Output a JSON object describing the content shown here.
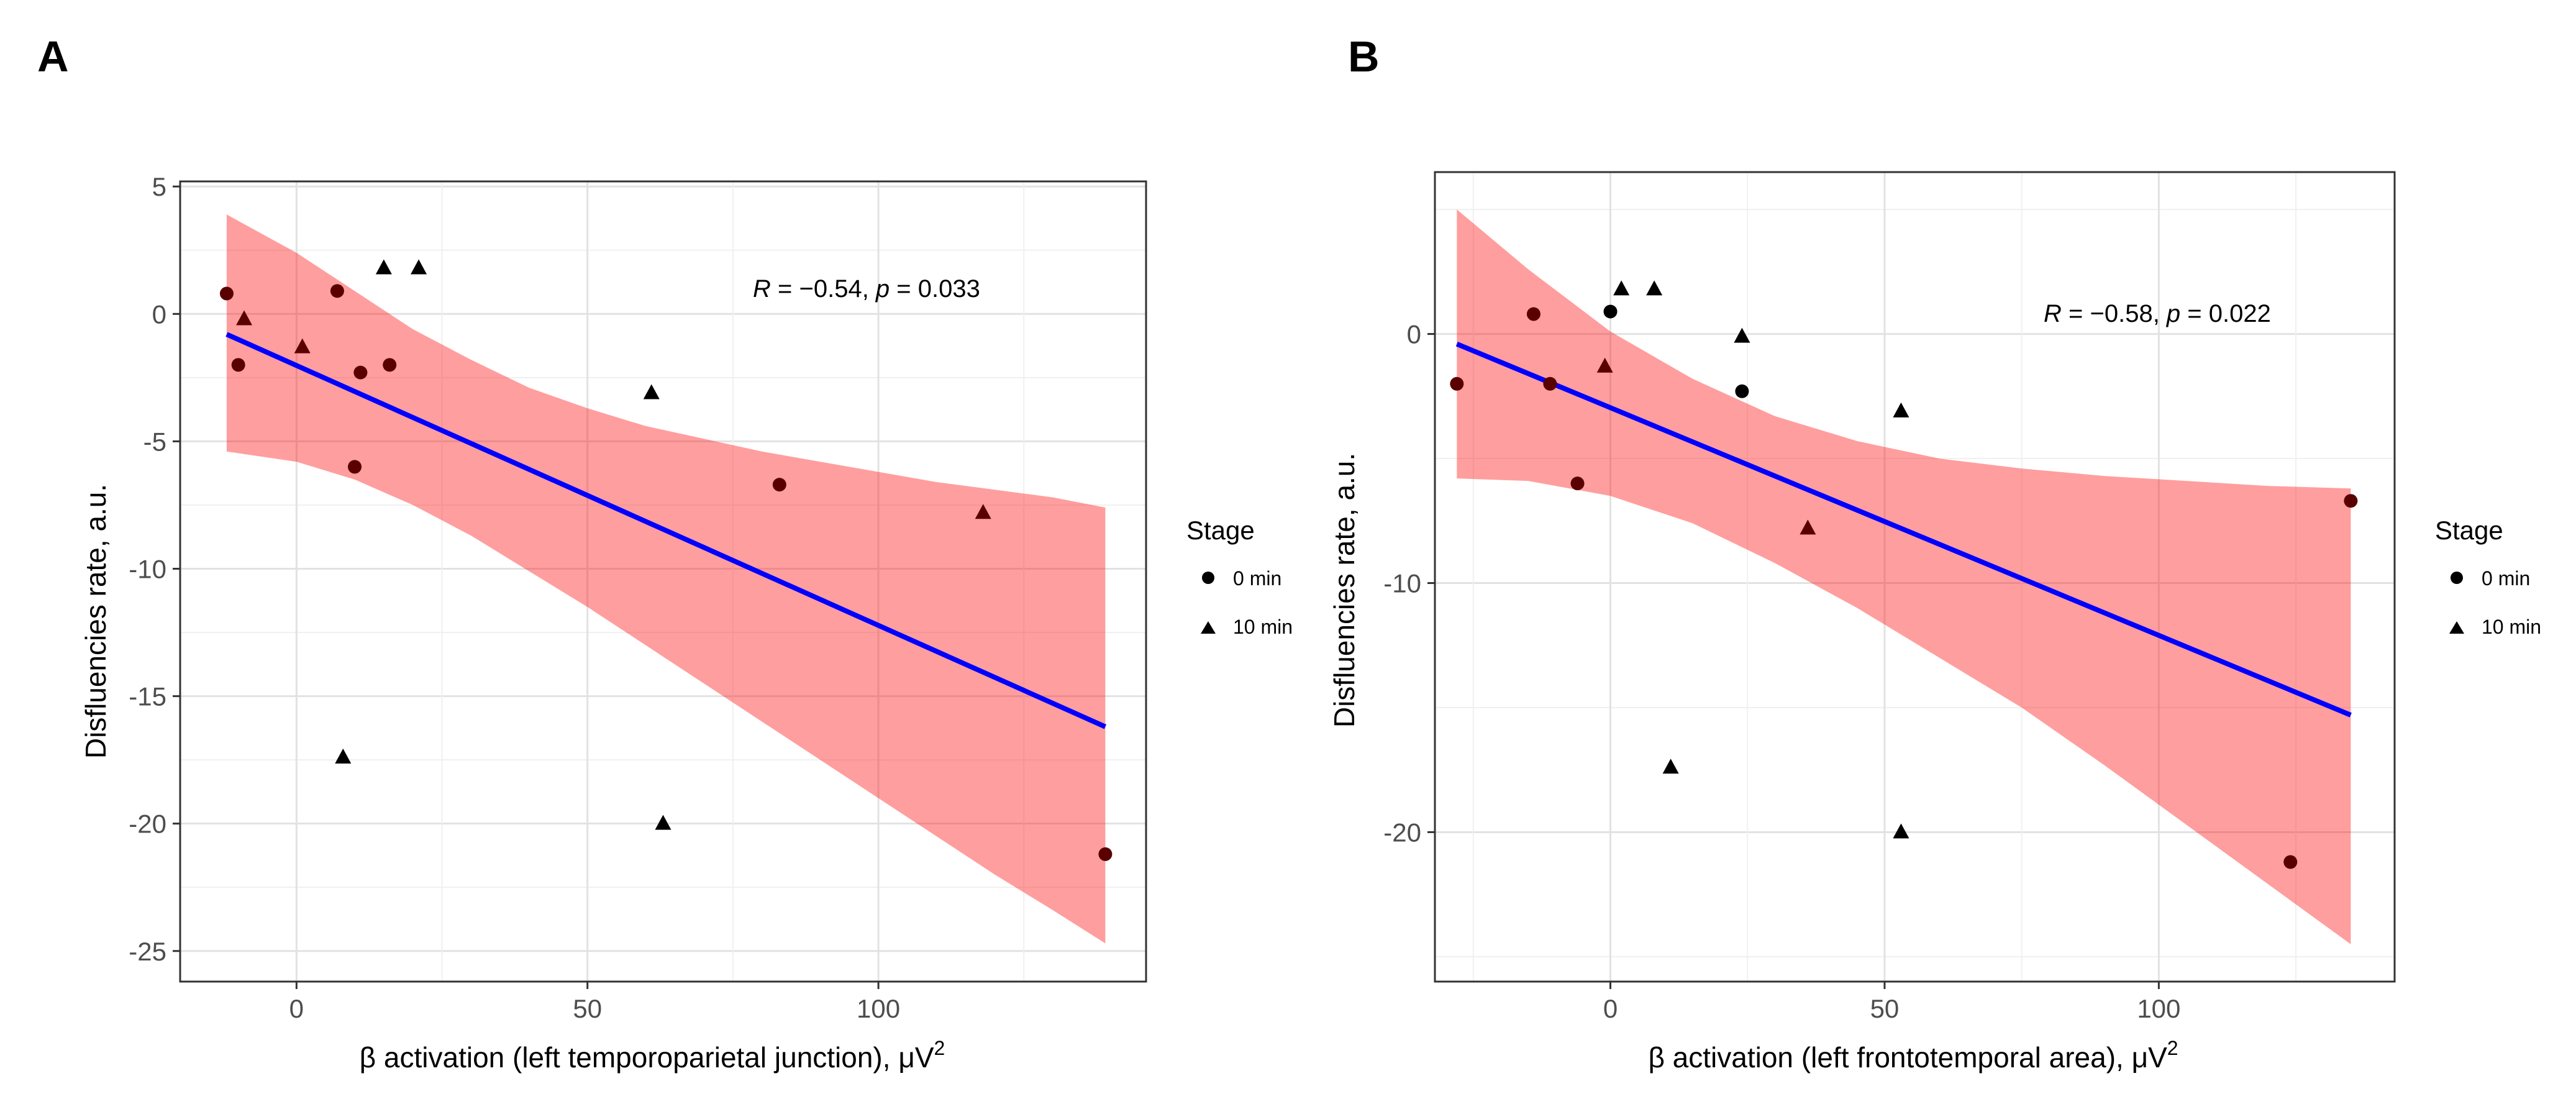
{
  "chart_data": [
    {
      "type": "scatter",
      "panel_label": "A",
      "xlabel_main": "β activation (left temporoparietal junction), μV",
      "xlabel_sup": "2",
      "ylabel": "Disfluencies rate, a.u.",
      "xlim": [
        -20,
        146
      ],
      "ylim": [
        -26.2,
        5.2
      ],
      "xticks": [
        0,
        50,
        100
      ],
      "yticks": [
        5,
        0,
        -5,
        -10,
        -15,
        -20,
        -25
      ],
      "annotation": {
        "r_label": "R",
        "r_value": " = −0.54, ",
        "p_label": "p",
        "p_value": " = 0.033"
      },
      "legend": {
        "title": "Stage",
        "entries": [
          {
            "label": "0 min",
            "shape": "circle"
          },
          {
            "label": "10 min",
            "shape": "triangle"
          }
        ]
      },
      "fit": {
        "x": [
          -12,
          139
        ],
        "y": [
          -0.8,
          -16.2
        ]
      },
      "band": {
        "x": [
          -12,
          0,
          10,
          20,
          30,
          40,
          50,
          60,
          70,
          80,
          90,
          100,
          110,
          120,
          130,
          139
        ],
        "upper": [
          3.9,
          2.4,
          0.9,
          -0.6,
          -1.8,
          -2.9,
          -3.7,
          -4.4,
          -4.9,
          -5.4,
          -5.8,
          -6.2,
          -6.6,
          -6.9,
          -7.2,
          -7.6
        ],
        "lower": [
          -5.4,
          -5.8,
          -6.5,
          -7.5,
          -8.7,
          -10.1,
          -11.5,
          -13.0,
          -14.5,
          -16.0,
          -17.5,
          -19.0,
          -20.5,
          -22.0,
          -23.4,
          -24.7
        ]
      },
      "series": [
        {
          "name": "0 min",
          "shape": "circle",
          "points": [
            [
              -12,
              0.8
            ],
            [
              -10,
              -2.0
            ],
            [
              7,
              0.9
            ],
            [
              11,
              -2.3
            ],
            [
              16,
              -2.0
            ],
            [
              10,
              -6.0
            ],
            [
              83,
              -6.7
            ],
            [
              139,
              -21.2
            ]
          ]
        },
        {
          "name": "10 min",
          "shape": "triangle",
          "points": [
            [
              -9,
              -0.2
            ],
            [
              1,
              -1.3
            ],
            [
              15,
              1.8
            ],
            [
              21,
              1.8
            ],
            [
              61,
              -3.1
            ],
            [
              118,
              -7.8
            ],
            [
              8,
              -17.4
            ],
            [
              63,
              -20.0
            ]
          ]
        }
      ]
    },
    {
      "type": "scatter",
      "panel_label": "B",
      "xlabel_main": "β activation (left frontotemporal area), μV",
      "xlabel_sup": "2",
      "ylabel": "Disfluencies rate, a.u.",
      "xlim": [
        -32,
        143
      ],
      "ylim": [
        -26.0,
        6.5
      ],
      "xticks": [
        0,
        50,
        100
      ],
      "yticks": [
        0,
        -10,
        -20
      ],
      "annotation": {
        "r_label": "R",
        "r_value": " = −0.58, ",
        "p_label": "p",
        "p_value": " = 0.022"
      },
      "legend": {
        "title": "Stage",
        "entries": [
          {
            "label": "0 min",
            "shape": "circle"
          },
          {
            "label": "10 min",
            "shape": "triangle"
          }
        ]
      },
      "fit": {
        "x": [
          -28,
          135
        ],
        "y": [
          -0.4,
          -15.3
        ]
      },
      "band": {
        "x": [
          -28,
          -15,
          0,
          15,
          30,
          45,
          60,
          75,
          90,
          105,
          120,
          135
        ],
        "upper": [
          5.0,
          2.6,
          0.1,
          -1.8,
          -3.3,
          -4.3,
          -5.0,
          -5.4,
          -5.7,
          -5.9,
          -6.1,
          -6.2
        ],
        "lower": [
          -5.8,
          -5.9,
          -6.5,
          -7.6,
          -9.2,
          -11.0,
          -13.0,
          -15.0,
          -17.3,
          -19.7,
          -22.1,
          -24.5
        ]
      },
      "series": [
        {
          "name": "0 min",
          "shape": "circle",
          "points": [
            [
              -28,
              -2.0
            ],
            [
              -14,
              0.8
            ],
            [
              -11,
              -2.0
            ],
            [
              -6,
              -6.0
            ],
            [
              0,
              0.9
            ],
            [
              24,
              -2.3
            ],
            [
              135,
              -6.7
            ],
            [
              124,
              -21.2
            ]
          ]
        },
        {
          "name": "10 min",
          "shape": "triangle",
          "points": [
            [
              -1,
              -1.3
            ],
            [
              2,
              1.8
            ],
            [
              8,
              1.8
            ],
            [
              24,
              -0.1
            ],
            [
              36,
              -7.8
            ],
            [
              53,
              -3.1
            ],
            [
              11,
              -17.4
            ],
            [
              53,
              -20.0
            ]
          ]
        }
      ]
    }
  ]
}
